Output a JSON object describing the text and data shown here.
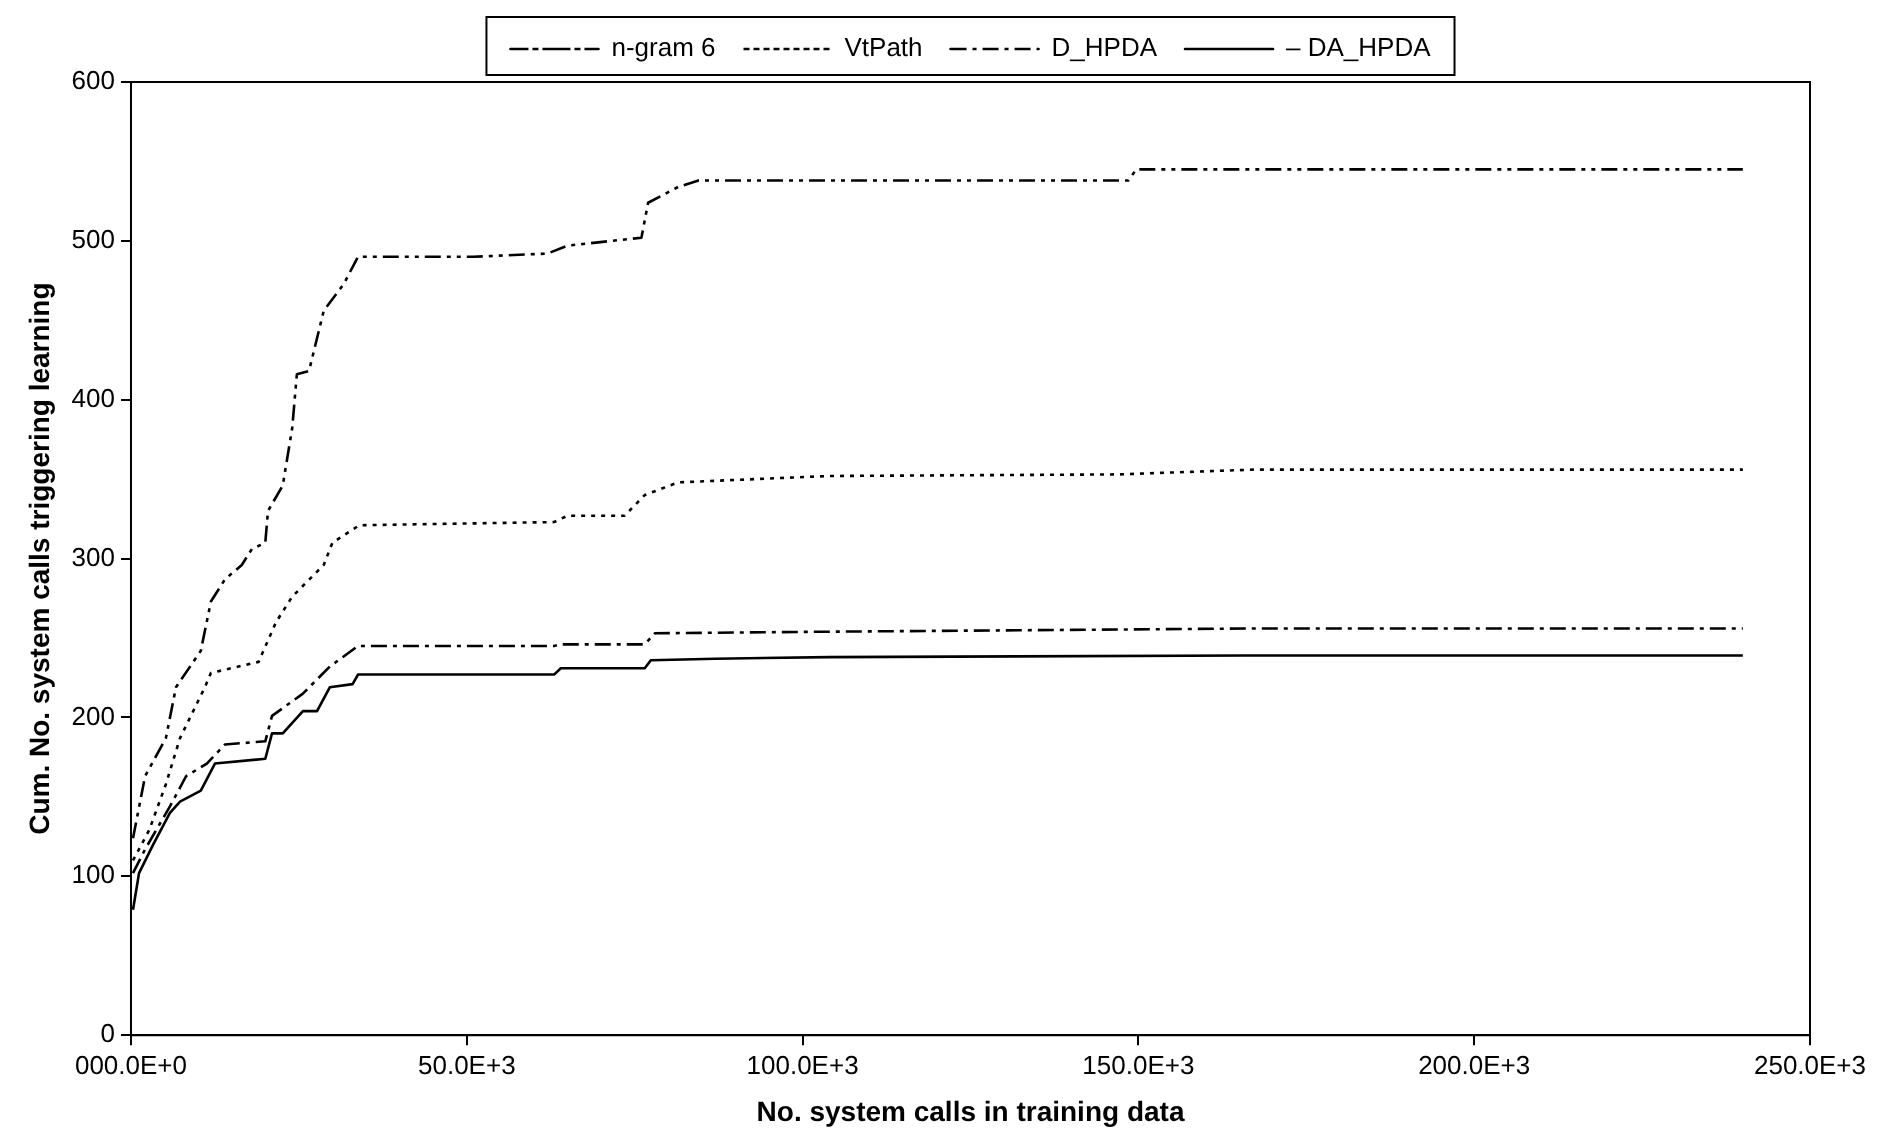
{
  "chart_data": {
    "type": "line",
    "xlabel": "No. system calls in training data",
    "ylabel": "Cum. No. system calls triggering learning",
    "xlim": [
      0,
      250000
    ],
    "xticks": [
      {
        "value": 0,
        "label": "000.0E+0"
      },
      {
        "value": 50000,
        "label": "50.0E+3"
      },
      {
        "value": 100000,
        "label": "100.0E+3"
      },
      {
        "value": 150000,
        "label": "150.0E+3"
      },
      {
        "value": 200000,
        "label": "200.0E+3"
      },
      {
        "value": 250000,
        "label": "250.0E+3"
      }
    ],
    "ylim": [
      0,
      600
    ],
    "yticks": [
      0,
      100,
      200,
      300,
      400,
      500,
      600
    ],
    "grid": false,
    "legend": "top",
    "marker": "none",
    "series": [
      {
        "name": "n-gram 6",
        "color": "#000000",
        "line_style": "dashdotdot",
        "x": [
          300,
          2100,
          5200,
          6700,
          10400,
          11900,
          14000,
          16500,
          18000,
          20000,
          20400,
          22600,
          24000,
          24700,
          26500,
          28700,
          31700,
          33800,
          51000,
          62000,
          65000,
          76000,
          77000,
          81500,
          84500,
          148500,
          149700,
          240000
        ],
        "values": [
          124,
          163,
          187,
          219,
          242,
          273,
          287,
          296,
          306,
          310,
          330,
          346,
          382,
          416,
          418,
          456,
          473,
          490,
          490,
          492,
          497,
          502,
          524,
          534,
          538,
          538,
          545,
          545
        ]
      },
      {
        "name": "VtPath",
        "color": "#000000",
        "line_style": "dotted",
        "x": [
          300,
          2700,
          5200,
          7300,
          11000,
          11900,
          19000,
          21600,
          24000,
          28700,
          30000,
          34000,
          63000,
          65000,
          73500,
          76500,
          81500,
          104000,
          147000,
          167000,
          240000
        ],
        "values": [
          110,
          129,
          158,
          187,
          219,
          228,
          235,
          260,
          276,
          296,
          310,
          321,
          323,
          327,
          327,
          340,
          348,
          352,
          353,
          356,
          356
        ]
      },
      {
        "name": "D_HPDA",
        "color": "#000000",
        "line_style": "dashdot",
        "x": [
          300,
          2100,
          5800,
          8200,
          11300,
          14000,
          20000,
          21000,
          25600,
          29600,
          33800,
          63000,
          64000,
          76500,
          78000,
          104000,
          167000,
          240000
        ],
        "values": [
          102,
          117,
          144,
          163,
          171,
          183,
          185,
          201,
          215,
          232,
          245,
          245,
          246,
          246,
          253,
          254,
          256,
          256
        ]
      },
      {
        "name": "– DA_HPDA",
        "color": "#000000",
        "line_style": "solid",
        "x": [
          300,
          1200,
          3300,
          5800,
          7300,
          10400,
          12500,
          20000,
          21000,
          22600,
          25600,
          27700,
          29600,
          33000,
          33800,
          63000,
          64000,
          76500,
          77400,
          87000,
          104000,
          166000,
          240000
        ],
        "values": [
          79,
          102,
          120,
          140,
          147,
          154,
          171,
          174,
          190,
          190,
          204,
          204,
          219,
          221,
          227,
          227,
          231,
          231,
          236,
          237,
          238,
          239,
          239
        ]
      }
    ]
  }
}
